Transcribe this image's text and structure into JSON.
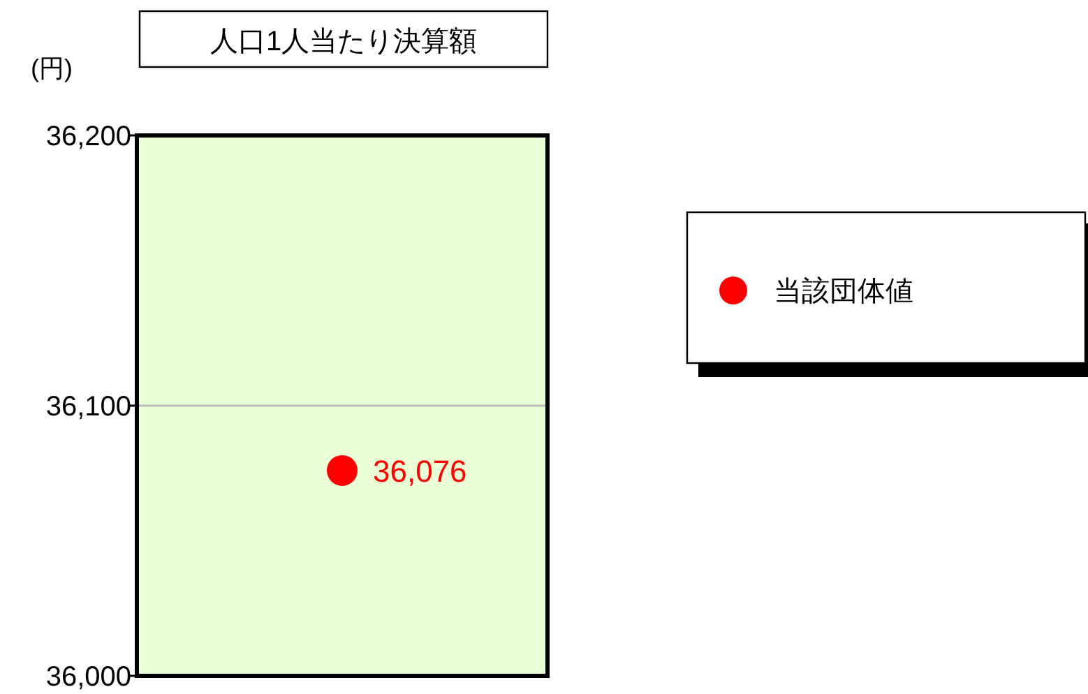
{
  "chart_data": {
    "type": "scatter",
    "title": "人口1人当たり決算額",
    "ylabel": "(円)",
    "categories": [
      null
    ],
    "series": [
      {
        "name": "当該団体値",
        "color": "#ff0000",
        "values": [
          36076
        ],
        "value_labels": [
          "36,076"
        ]
      }
    ],
    "ylim": [
      36000,
      36200
    ],
    "yticks": [
      {
        "value": 36000,
        "label": "36,000"
      },
      {
        "value": 36100,
        "label": "36,100"
      },
      {
        "value": 36200,
        "label": "36,200"
      }
    ],
    "grid": "y",
    "legend": "right",
    "marker": "circle"
  }
}
